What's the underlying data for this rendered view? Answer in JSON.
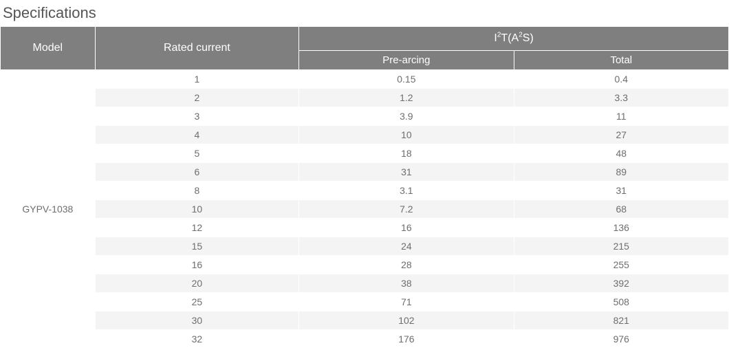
{
  "title": "Specifications",
  "table": {
    "type": "table",
    "header_bg": "#7f7f7f",
    "header_text_color": "#ffffff",
    "row_odd_bg": "#ffffff",
    "row_even_bg": "#f4f4f4",
    "cell_text_color": "#6d6d6d",
    "border_color": "#ffffff",
    "title_fontsize": 22,
    "header_fontsize": 16,
    "subheader_fontsize": 15,
    "cell_fontsize": 14,
    "columns": {
      "model": "Model",
      "rated_current": "Rated current",
      "i2t_group": "I²T(A²S)",
      "pre_arcing": "Pre-arcing",
      "total": "Total"
    },
    "column_widths": {
      "model": "13%",
      "rated_current": "28%",
      "pre_arcing": "29.5%",
      "total": "29.5%"
    },
    "model": "GYPV-1038",
    "rows": [
      {
        "rated_current": "1",
        "pre_arcing": "0.15",
        "total": "0.4"
      },
      {
        "rated_current": "2",
        "pre_arcing": "1.2",
        "total": "3.3"
      },
      {
        "rated_current": "3",
        "pre_arcing": "3.9",
        "total": "11"
      },
      {
        "rated_current": "4",
        "pre_arcing": "10",
        "total": "27"
      },
      {
        "rated_current": "5",
        "pre_arcing": "18",
        "total": "48"
      },
      {
        "rated_current": "6",
        "pre_arcing": "31",
        "total": "89"
      },
      {
        "rated_current": "8",
        "pre_arcing": "3.1",
        "total": "31"
      },
      {
        "rated_current": "10",
        "pre_arcing": "7.2",
        "total": "68"
      },
      {
        "rated_current": "12",
        "pre_arcing": "16",
        "total": "136"
      },
      {
        "rated_current": "15",
        "pre_arcing": "24",
        "total": "215"
      },
      {
        "rated_current": "16",
        "pre_arcing": "28",
        "total": "255"
      },
      {
        "rated_current": "20",
        "pre_arcing": "38",
        "total": "392"
      },
      {
        "rated_current": "25",
        "pre_arcing": "71",
        "total": "508"
      },
      {
        "rated_current": "30",
        "pre_arcing": "102",
        "total": "821"
      },
      {
        "rated_current": "32",
        "pre_arcing": "176",
        "total": "976"
      }
    ]
  }
}
